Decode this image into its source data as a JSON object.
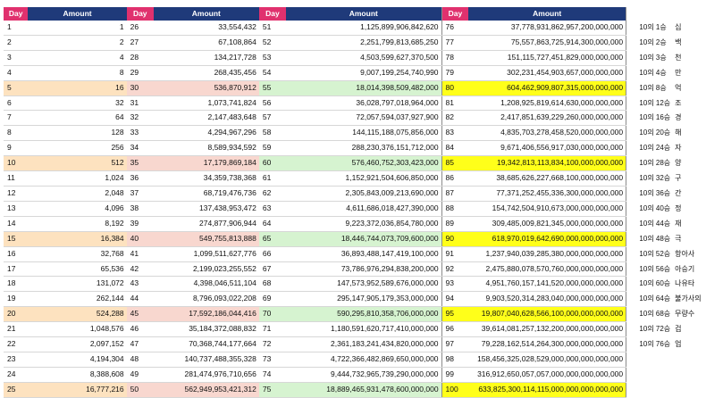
{
  "header": {
    "day": "Day",
    "amount": "Amount"
  },
  "colors": {
    "day_header": "#e0316e",
    "amount_header": "#1f3a7a",
    "band1": "#fde2bf",
    "band2": "#f8d7cf",
    "band3": "#d6f3d0",
    "band4": "#ffff1a"
  },
  "rows": [
    {
      "cells": [
        "1",
        "1",
        "26",
        "33,554,432",
        "51",
        "1,125,899,906,842,620",
        "76",
        "37,778,931,862,957,200,000,000"
      ],
      "side": [
        "10의 1승",
        "십"
      ]
    },
    {
      "cells": [
        "2",
        "2",
        "27",
        "67,108,864",
        "52",
        "2,251,799,813,685,250",
        "77",
        "75,557,863,725,914,300,000,000"
      ],
      "side": [
        "10의 2승",
        "백"
      ]
    },
    {
      "cells": [
        "3",
        "4",
        "28",
        "134,217,728",
        "53",
        "4,503,599,627,370,500",
        "78",
        "151,115,727,451,829,000,000,000"
      ],
      "side": [
        "10의 3승",
        "천"
      ]
    },
    {
      "cells": [
        "4",
        "8",
        "29",
        "268,435,456",
        "54",
        "9,007,199,254,740,990",
        "79",
        "302,231,454,903,657,000,000,000"
      ],
      "side": [
        "10의 4승",
        "만"
      ]
    },
    {
      "cells": [
        "5",
        "16",
        "30",
        "536,870,912",
        "55",
        "18,014,398,509,482,000",
        "80",
        "604,462,909,807,315,000,000,000"
      ],
      "side": [
        "10의 8승",
        "억"
      ]
    },
    {
      "cells": [
        "6",
        "32",
        "31",
        "1,073,741,824",
        "56",
        "36,028,797,018,964,000",
        "81",
        "1,208,925,819,614,630,000,000,000"
      ],
      "side": [
        "10의 12승",
        "조"
      ]
    },
    {
      "cells": [
        "7",
        "64",
        "32",
        "2,147,483,648",
        "57",
        "72,057,594,037,927,900",
        "82",
        "2,417,851,639,229,260,000,000,000"
      ],
      "side": [
        "10의 16승",
        "경"
      ]
    },
    {
      "cells": [
        "8",
        "128",
        "33",
        "4,294,967,296",
        "58",
        "144,115,188,075,856,000",
        "83",
        "4,835,703,278,458,520,000,000,000"
      ],
      "side": [
        "10의 20승",
        "해"
      ]
    },
    {
      "cells": [
        "9",
        "256",
        "34",
        "8,589,934,592",
        "59",
        "288,230,376,151,712,000",
        "84",
        "9,671,406,556,917,030,000,000,000"
      ],
      "side": [
        "10의 24승",
        "자"
      ]
    },
    {
      "cells": [
        "10",
        "512",
        "35",
        "17,179,869,184",
        "60",
        "576,460,752,303,423,000",
        "85",
        "19,342,813,113,834,100,000,000,000"
      ],
      "side": [
        "10의 28승",
        "양"
      ]
    },
    {
      "cells": [
        "11",
        "1,024",
        "36",
        "34,359,738,368",
        "61",
        "1,152,921,504,606,850,000",
        "86",
        "38,685,626,227,668,100,000,000,000"
      ],
      "side": [
        "10의 32승",
        "구"
      ]
    },
    {
      "cells": [
        "12",
        "2,048",
        "37",
        "68,719,476,736",
        "62",
        "2,305,843,009,213,690,000",
        "87",
        "77,371,252,455,336,300,000,000,000"
      ],
      "side": [
        "10의 36승",
        "간"
      ]
    },
    {
      "cells": [
        "13",
        "4,096",
        "38",
        "137,438,953,472",
        "63",
        "4,611,686,018,427,390,000",
        "88",
        "154,742,504,910,673,000,000,000,000"
      ],
      "side": [
        "10의 40승",
        "정"
      ]
    },
    {
      "cells": [
        "14",
        "8,192",
        "39",
        "274,877,906,944",
        "64",
        "9,223,372,036,854,780,000",
        "89",
        "309,485,009,821,345,000,000,000,000"
      ],
      "side": [
        "10의 44승",
        "재"
      ]
    },
    {
      "cells": [
        "15",
        "16,384",
        "40",
        "549,755,813,888",
        "65",
        "18,446,744,073,709,600,000",
        "90",
        "618,970,019,642,690,000,000,000,000"
      ],
      "side": [
        "10의 48승",
        "극"
      ]
    },
    {
      "cells": [
        "16",
        "32,768",
        "41",
        "1,099,511,627,776",
        "66",
        "36,893,488,147,419,100,000",
        "91",
        "1,237,940,039,285,380,000,000,000,000"
      ],
      "side": [
        "10의 52승",
        "항아사"
      ]
    },
    {
      "cells": [
        "17",
        "65,536",
        "42",
        "2,199,023,255,552",
        "67",
        "73,786,976,294,838,200,000",
        "92",
        "2,475,880,078,570,760,000,000,000,000"
      ],
      "side": [
        "10의 56승",
        "아승기"
      ]
    },
    {
      "cells": [
        "18",
        "131,072",
        "43",
        "4,398,046,511,104",
        "68",
        "147,573,952,589,676,000,000",
        "93",
        "4,951,760,157,141,520,000,000,000,000"
      ],
      "side": [
        "10의 60승",
        "나유타"
      ]
    },
    {
      "cells": [
        "19",
        "262,144",
        "44",
        "8,796,093,022,208",
        "69",
        "295,147,905,179,353,000,000",
        "94",
        "9,903,520,314,283,040,000,000,000,000"
      ],
      "side": [
        "10의 64승",
        "불가사의"
      ]
    },
    {
      "cells": [
        "20",
        "524,288",
        "45",
        "17,592,186,044,416",
        "70",
        "590,295,810,358,706,000,000",
        "95",
        "19,807,040,628,566,100,000,000,000,000"
      ],
      "side": [
        "10의 68승",
        "무량수"
      ]
    },
    {
      "cells": [
        "21",
        "1,048,576",
        "46",
        "35,184,372,088,832",
        "71",
        "1,180,591,620,717,410,000,000",
        "96",
        "39,614,081,257,132,200,000,000,000,000"
      ],
      "side": [
        "10의 72승",
        "겁"
      ]
    },
    {
      "cells": [
        "22",
        "2,097,152",
        "47",
        "70,368,744,177,664",
        "72",
        "2,361,183,241,434,820,000,000",
        "97",
        "79,228,162,514,264,300,000,000,000,000"
      ],
      "side": [
        "10의 76승",
        "업"
      ]
    },
    {
      "cells": [
        "23",
        "4,194,304",
        "48",
        "140,737,488,355,328",
        "73",
        "4,722,366,482,869,650,000,000",
        "98",
        "158,456,325,028,529,000,000,000,000,000"
      ],
      "side": [
        "",
        ""
      ]
    },
    {
      "cells": [
        "24",
        "8,388,608",
        "49",
        "281,474,976,710,656",
        "74",
        "9,444,732,965,739,290,000,000",
        "99",
        "316,912,650,057,057,000,000,000,000,000"
      ],
      "side": [
        "",
        ""
      ]
    },
    {
      "cells": [
        "25",
        "16,777,216",
        "50",
        "562,949,953,421,312",
        "75",
        "18,889,465,931,478,600,000,000",
        "100",
        "633,825,300,114,115,000,000,000,000,000"
      ],
      "side": [
        "",
        ""
      ]
    }
  ]
}
